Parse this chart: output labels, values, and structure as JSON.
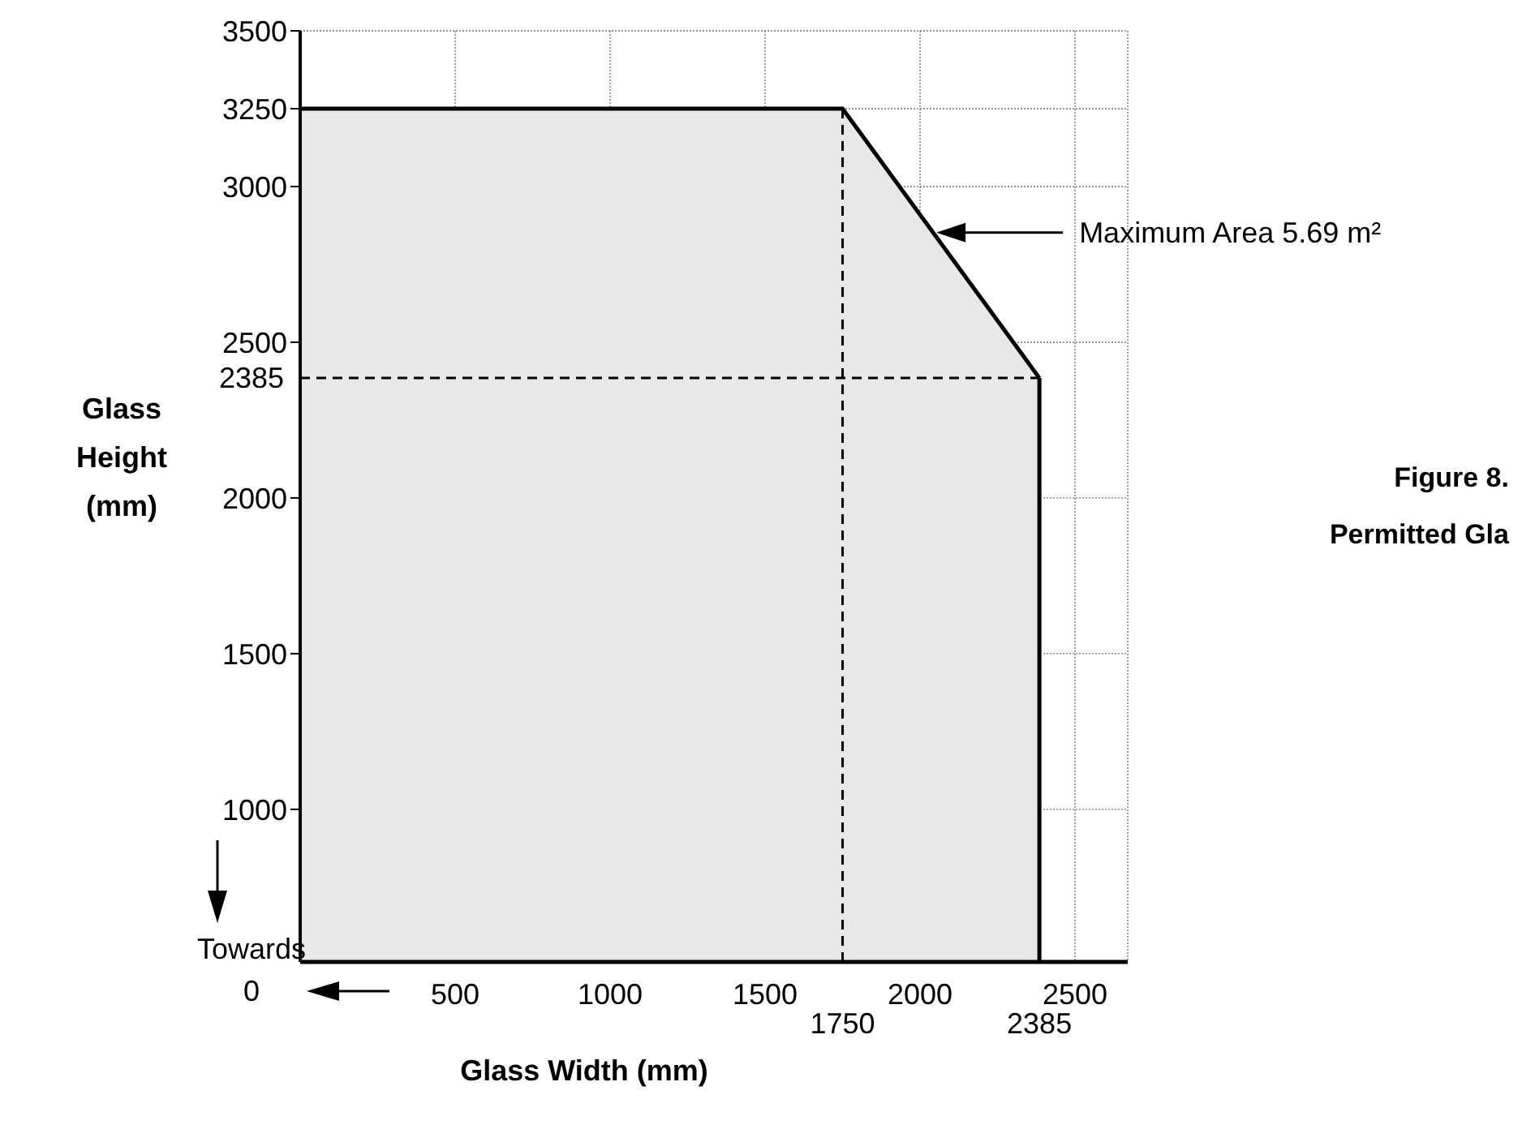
{
  "chart_data": {
    "type": "area",
    "title": "Figure 8.",
    "subtitle": "Permitted Gla",
    "xlabel": "Glass Width (mm)",
    "ylabel": "Glass Height (mm)",
    "x": [
      0,
      1750,
      2385
    ],
    "values": [
      3250,
      3250,
      2385
    ],
    "color": "#e8e8e8",
    "xlim": [
      0,
      2670
    ],
    "xticks": [
      500,
      1000,
      1500,
      2000,
      2500
    ],
    "ylim": [
      510,
      3500
    ],
    "yticks": [
      1000,
      1500,
      2000,
      2500,
      3000,
      3250,
      3500
    ],
    "grid": true,
    "ref_lines": [
      {
        "axis": "x",
        "value": 1750,
        "label": "1750",
        "line_style": "dashed"
      },
      {
        "axis": "x",
        "value": 2385,
        "label": "2385",
        "line_style": "solid"
      },
      {
        "axis": "y",
        "value": 2385,
        "label": "2385",
        "line_style": "dashed"
      }
    ],
    "annotations": [
      "Maximum Area 5.69 m²",
      "Towards 0"
    ]
  }
}
